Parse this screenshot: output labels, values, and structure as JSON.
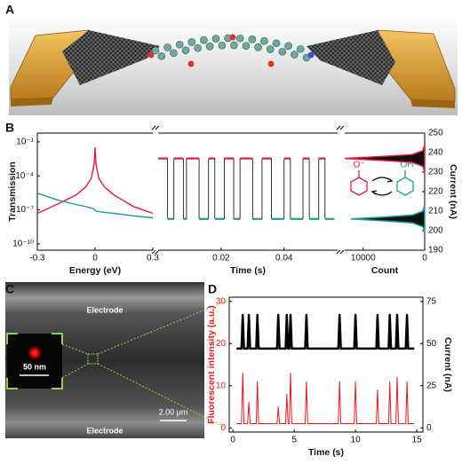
{
  "panels": [
    "A",
    "B",
    "C",
    "D"
  ],
  "panel_b_inset": {
    "labels": [
      "O⁻",
      "OH"
    ]
  },
  "panel_c": {
    "labels": [
      "Electrode",
      "Electrode"
    ],
    "inset_scale": "50 nm",
    "scale_bar": "2.00 μm"
  },
  "chart_data": [
    {
      "type": "line",
      "xlabel": "Energy (eV)",
      "ylabel": "Transmission",
      "log_y": true,
      "xlim": [
        -0.3,
        0.3
      ],
      "xticks": [
        -0.3,
        0,
        0.3
      ],
      "ylim": [
        2.8e-11,
        0.6
      ],
      "yticks": [
        {
          "value": 1e-10,
          "label": "10⁻¹⁰"
        },
        {
          "value": 1e-07,
          "label": "10⁻⁷"
        },
        {
          "value": 0.0001,
          "label": "10⁻⁴"
        },
        {
          "value": 0.1,
          "label": "10⁻¹"
        }
      ],
      "x": [
        -0.3,
        -0.2,
        -0.1,
        -0.05,
        -0.02,
        -0.005,
        0,
        0.005,
        0.02,
        0.05,
        0.1,
        0.2,
        0.3
      ],
      "series": [
        {
          "color": "#e8173c",
          "values": [
            5e-08,
            3e-07,
            2e-06,
            1e-05,
            6e-05,
            0.001,
            0.03,
            0.001,
            6e-05,
            1e-05,
            2e-06,
            2e-07,
            5e-08
          ]
        },
        {
          "color": "#1a9e96",
          "values": [
            3e-06,
            8e-07,
            3e-07,
            2e-07,
            1.5e-07,
            1.2e-07,
            1e-07,
            8e-08,
            7e-08,
            6e-08,
            5e-08,
            3e-08,
            2e-08
          ]
        }
      ]
    },
    {
      "type": "step_trace",
      "xlabel": "Time (s)",
      "xlim": [
        0,
        0.057
      ],
      "xticks": [
        0.02,
        0.04
      ],
      "ylim": [
        190,
        250
      ],
      "level_colors": [
        "#e8173c",
        "#1a9e96"
      ],
      "x": [
        0,
        0.003,
        0.003,
        0.005,
        0.005,
        0.008,
        0.008,
        0.009,
        0.009,
        0.013,
        0.013,
        0.016,
        0.016,
        0.018,
        0.018,
        0.021,
        0.021,
        0.024,
        0.024,
        0.026,
        0.026,
        0.03,
        0.03,
        0.033,
        0.033,
        0.036,
        0.036,
        0.04,
        0.04,
        0.042,
        0.042,
        0.046,
        0.046,
        0.048,
        0.048,
        0.051,
        0.051,
        0.053,
        0.053,
        0.056
      ],
      "series": [
        {
          "color": "#000000",
          "values": [
            237,
            237,
            206,
            206,
            237,
            237,
            206,
            206,
            237,
            237,
            206,
            206,
            237,
            237,
            206,
            206,
            237,
            237,
            206,
            206,
            237,
            237,
            206,
            206,
            237,
            237,
            206,
            206,
            237,
            237,
            206,
            206,
            237,
            237,
            206,
            206,
            237,
            237,
            206,
            206
          ]
        }
      ]
    },
    {
      "type": "histogram_h",
      "xlabel": "Count",
      "ylabel": "Current (nA)",
      "yaxis_side": "right",
      "xlim": [
        13000,
        0
      ],
      "xticks": [
        10000,
        0
      ],
      "ylim": [
        190,
        250
      ],
      "yticks": [
        190,
        200,
        210,
        220,
        230,
        240,
        250
      ],
      "series": [
        {
          "color": "#e8173c",
          "current": [
            230,
            233,
            235,
            236,
            237,
            238,
            239,
            241,
            244
          ],
          "values": [
            0,
            300,
            2000,
            7000,
            13000,
            7000,
            2000,
            300,
            0
          ]
        },
        {
          "color": "#1a9e96",
          "current": [
            199,
            202,
            204,
            205,
            206,
            207,
            208,
            210,
            213
          ],
          "values": [
            0,
            300,
            2000,
            6500,
            12000,
            6500,
            2000,
            300,
            0
          ]
        }
      ]
    },
    {
      "type": "dual_line",
      "xlabel": "Time (s)",
      "ylabel": "Fluorescent intensity (a.u.)",
      "y2label": "Current (nA)",
      "yaxis_color": "#e8171c",
      "xlim": [
        -0.3,
        15.5
      ],
      "xticks": [
        0,
        5,
        10,
        15
      ],
      "ylim": [
        -1,
        31
      ],
      "yticks": [
        0,
        10,
        20,
        30
      ],
      "y2lim": [
        -2.5,
        77.5
      ],
      "y2ticks": [
        0,
        25,
        50,
        75
      ],
      "x": [
        0.3,
        0.7,
        0.8,
        0.9,
        1.2,
        1.3,
        1.4,
        1.9,
        2.0,
        2.1,
        3.6,
        3.7,
        3.8,
        4.3,
        4.4,
        4.5,
        4.6,
        4.7,
        4.8,
        5.9,
        6.0,
        6.1,
        8.6,
        8.7,
        8.8,
        9.9,
        10.0,
        10.1,
        11.7,
        11.8,
        11.9,
        12.7,
        12.8,
        12.9,
        13.3,
        13.4,
        13.5,
        14.1,
        14.2,
        14.3,
        14.8
      ],
      "series": [
        {
          "color": "#000000",
          "axis": "y2",
          "values": [
            47,
            47,
            67,
            47,
            47,
            67,
            47,
            47,
            67,
            47,
            47,
            67,
            47,
            47,
            67,
            47,
            47,
            67,
            47,
            47,
            67,
            47,
            47,
            67,
            47,
            47,
            67,
            47,
            47,
            67,
            47,
            47,
            67,
            47,
            47,
            67,
            47,
            47,
            67,
            47,
            47
          ]
        },
        {
          "color": "#e8171c",
          "values": [
            1,
            1,
            13,
            1,
            1,
            6,
            1,
            1,
            11,
            1,
            1,
            5,
            1,
            1,
            8,
            1,
            1,
            13,
            1,
            1,
            11,
            1,
            1,
            11,
            1,
            1,
            11,
            1,
            1,
            9,
            1,
            1,
            11,
            1,
            1,
            12,
            1,
            1,
            11,
            1,
            1
          ]
        }
      ]
    }
  ]
}
